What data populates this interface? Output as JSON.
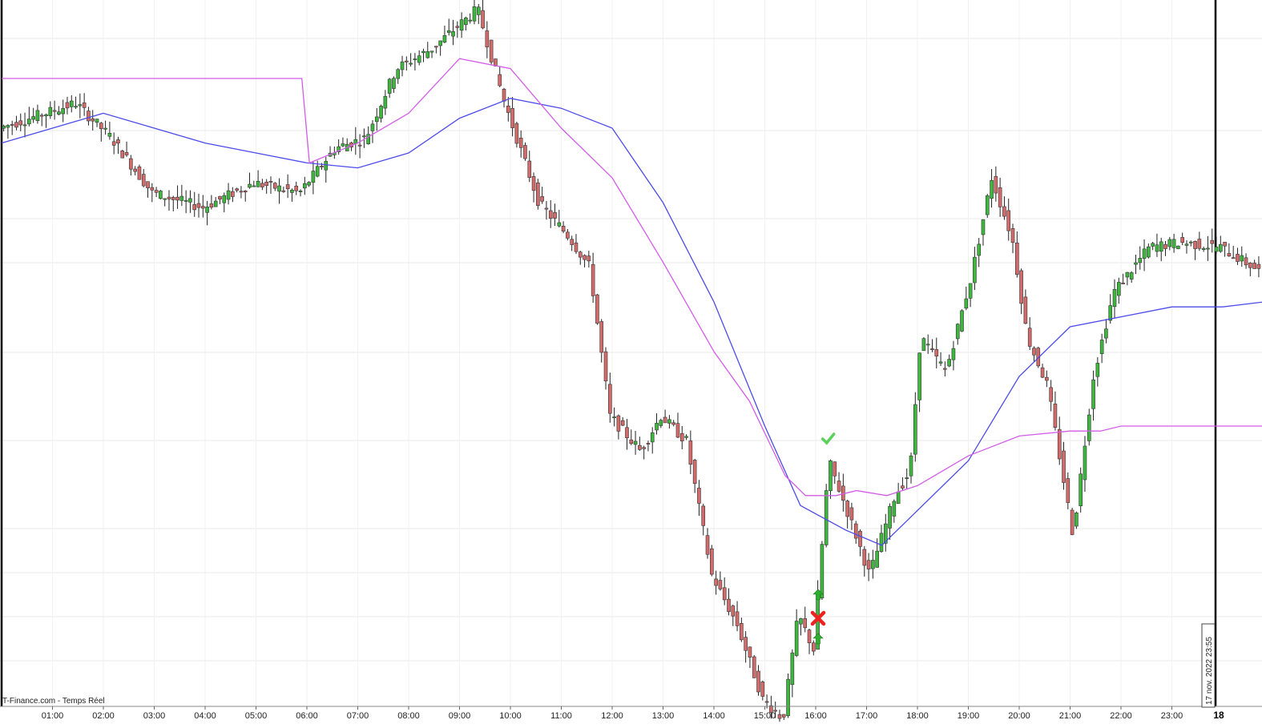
{
  "watermark": "T-Finance.com - Temps Réel",
  "cursor_label": "17 nov. 2022 23:55",
  "day_marker_label": "18",
  "colors": {
    "up": "#3cb83c",
    "down": "#d46a6a",
    "wick": "#222222",
    "ma_blue": "#4b4bea",
    "ma_magenta": "#d25ce8",
    "grid": "#e8e8e8",
    "signal_up": "#2fae2f",
    "signal_cross": "#ee2222",
    "signal_check": "#5bd15b"
  },
  "chart_data": {
    "type": "candlestick",
    "title": "",
    "x_tick_labels": [
      "01:00",
      "02:00",
      "03:00",
      "04:00",
      "05:00",
      "06:00",
      "07:00",
      "08:00",
      "09:00",
      "10:00",
      "11:00",
      "12:00",
      "13:00",
      "14:00",
      "15:00",
      "16:00",
      "17:00",
      "18:00",
      "19:00",
      "20:00",
      "21:00",
      "22:00",
      "23:00"
    ],
    "y_axis_labels_visible": false,
    "grid": "horizontal",
    "price_anchors": [
      {
        "time": 0.0,
        "price": 70
      },
      {
        "time": 1.5,
        "price": 75
      },
      {
        "time": 2.2,
        "price": 68
      },
      {
        "time": 3.0,
        "price": 57
      },
      {
        "time": 4.0,
        "price": 54
      },
      {
        "time": 5.0,
        "price": 59
      },
      {
        "time": 5.9,
        "price": 57
      },
      {
        "time": 6.6,
        "price": 66
      },
      {
        "time": 7.2,
        "price": 68
      },
      {
        "time": 7.8,
        "price": 82
      },
      {
        "time": 8.5,
        "price": 86
      },
      {
        "time": 9.4,
        "price": 94
      },
      {
        "time": 9.9,
        "price": 76
      },
      {
        "time": 10.6,
        "price": 55
      },
      {
        "time": 11.2,
        "price": 48
      },
      {
        "time": 11.6,
        "price": 42
      },
      {
        "time": 12.0,
        "price": 12
      },
      {
        "time": 12.6,
        "price": 5
      },
      {
        "time": 13.0,
        "price": 12
      },
      {
        "time": 13.5,
        "price": 7
      },
      {
        "time": 14.0,
        "price": -20
      },
      {
        "time": 14.5,
        "price": -30
      },
      {
        "time": 15.0,
        "price": -45
      },
      {
        "time": 15.4,
        "price": -49
      },
      {
        "time": 15.7,
        "price": -28
      },
      {
        "time": 16.0,
        "price": -35
      },
      {
        "time": 16.3,
        "price": 3
      },
      {
        "time": 16.8,
        "price": -11
      },
      {
        "time": 17.1,
        "price": -20
      },
      {
        "time": 17.6,
        "price": -4
      },
      {
        "time": 17.9,
        "price": 1
      },
      {
        "time": 18.1,
        "price": 28
      },
      {
        "time": 18.6,
        "price": 21
      },
      {
        "time": 19.1,
        "price": 40
      },
      {
        "time": 19.5,
        "price": 60
      },
      {
        "time": 19.9,
        "price": 48
      },
      {
        "time": 20.2,
        "price": 28
      },
      {
        "time": 20.6,
        "price": 18
      },
      {
        "time": 21.1,
        "price": -12
      },
      {
        "time": 21.5,
        "price": 20
      },
      {
        "time": 21.9,
        "price": 37
      },
      {
        "time": 22.6,
        "price": 46
      },
      {
        "time": 23.2,
        "price": 47
      },
      {
        "time": 24.0,
        "price": 46
      },
      {
        "time": 24.8,
        "price": 41
      }
    ],
    "series": [
      {
        "kind": "moving_average",
        "points": [
          [
            0,
            67
          ],
          [
            1,
            70
          ],
          [
            2,
            73
          ],
          [
            3,
            70
          ],
          [
            4,
            67
          ],
          [
            5,
            65
          ],
          [
            6,
            63
          ],
          [
            7,
            62
          ],
          [
            8,
            65
          ],
          [
            9,
            72
          ],
          [
            10,
            76
          ],
          [
            11,
            74
          ],
          [
            12,
            70
          ],
          [
            13,
            55
          ],
          [
            14,
            35
          ],
          [
            15,
            10
          ],
          [
            15.7,
            -6
          ],
          [
            16.6,
            -11
          ],
          [
            17.3,
            -14
          ],
          [
            18,
            -7
          ],
          [
            19,
            3
          ],
          [
            20,
            20
          ],
          [
            21,
            30
          ],
          [
            22,
            32
          ],
          [
            23,
            34
          ],
          [
            24,
            34
          ],
          [
            24.8,
            35
          ]
        ]
      },
      {
        "kind": "moving_average",
        "points": [
          [
            0,
            80
          ],
          [
            5.9,
            80
          ],
          [
            6.05,
            63
          ],
          [
            7,
            67
          ],
          [
            8,
            73
          ],
          [
            9,
            84
          ],
          [
            10,
            82
          ],
          [
            11,
            70
          ],
          [
            12,
            60
          ],
          [
            13,
            43
          ],
          [
            14,
            25
          ],
          [
            14.7,
            15
          ],
          [
            15.4,
            0
          ],
          [
            15.8,
            -4
          ],
          [
            16.4,
            -4
          ],
          [
            16.8,
            -3
          ],
          [
            17.4,
            -4
          ],
          [
            18,
            -2
          ],
          [
            19,
            4
          ],
          [
            20,
            8
          ],
          [
            21,
            9
          ],
          [
            21.6,
            9
          ],
          [
            22,
            10
          ],
          [
            23,
            10
          ],
          [
            24.8,
            10
          ]
        ]
      }
    ],
    "signals": [
      {
        "time": 16.0,
        "type": "up-arrow"
      },
      {
        "time": 16.0,
        "type": "cross"
      },
      {
        "time": 16.0,
        "type": "up-arrow"
      },
      {
        "time": 16.2,
        "type": "check"
      }
    ]
  }
}
